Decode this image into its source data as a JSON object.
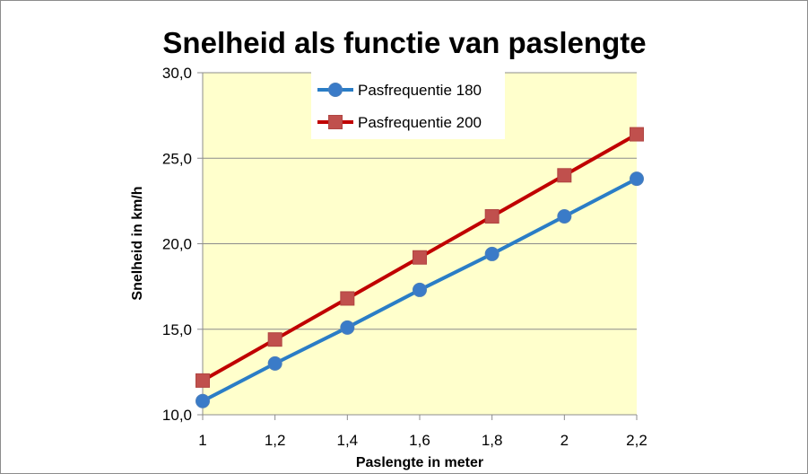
{
  "chart_data": {
    "type": "line",
    "title": "Snelheid als functie van paslengte",
    "xlabel": "Paslengte in meter",
    "ylabel": "Snelheid in km/h",
    "x": [
      1,
      1.2,
      1.4,
      1.6,
      1.8,
      2,
      2.2
    ],
    "x_tick_labels": [
      "1",
      "1,2",
      "1,4",
      "1,6",
      "1,8",
      "2",
      "2,2"
    ],
    "y_tick_labels": [
      "10,0",
      "15,0",
      "20,0",
      "25,0",
      "30,0"
    ],
    "y_ticks": [
      10,
      15,
      20,
      25,
      30
    ],
    "xlim": [
      1,
      2.2
    ],
    "ylim": [
      10,
      30
    ],
    "grid": "horizontal",
    "plot_background": "#ffffcc",
    "legend_position": "top-center",
    "series": [
      {
        "name": "Pasfrequentie 180",
        "values": [
          10.8,
          13.0,
          15.1,
          17.3,
          19.4,
          21.6,
          23.8
        ],
        "color": "#3a7bc8",
        "line_color": "#2a7dc6",
        "marker": "circle"
      },
      {
        "name": "Pasfrequentie 200",
        "values": [
          12.0,
          14.4,
          16.8,
          19.2,
          21.6,
          24.0,
          26.4
        ],
        "color": "#c0504d",
        "line_color": "#c00000",
        "marker": "square"
      }
    ]
  }
}
